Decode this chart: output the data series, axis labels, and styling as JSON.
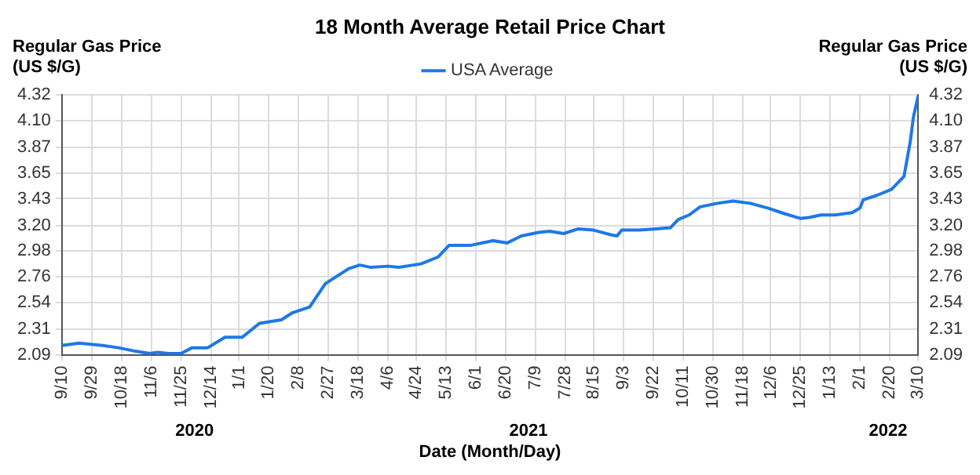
{
  "chart_data": {
    "type": "line",
    "title": "18 Month Average Retail Price Chart",
    "xlabel": "Date (Month/Day)",
    "ylabel": "Regular Gas Price (US $/G)",
    "y2label": "Regular Gas Price (US $/G)",
    "annotations": [
      "2020",
      "2021",
      "2022"
    ],
    "legend": "top",
    "grid": true,
    "marker": "none",
    "line_style": "solid",
    "xlim": [
      "2020-09-10",
      "2022-03-10"
    ],
    "xticks": [
      {
        "value": "2020-09-10",
        "label": "9/10"
      },
      {
        "value": "2020-09-29",
        "label": "9/29"
      },
      {
        "value": "2020-10-18",
        "label": "10/18"
      },
      {
        "value": "2020-11-06",
        "label": "11/6"
      },
      {
        "value": "2020-11-25",
        "label": "11/25"
      },
      {
        "value": "2020-12-14",
        "label": "12/14"
      },
      {
        "value": "2021-01-01",
        "label": "1/1"
      },
      {
        "value": "2021-01-20",
        "label": "1/20"
      },
      {
        "value": "2021-02-08",
        "label": "2/8"
      },
      {
        "value": "2021-02-27",
        "label": "2/27"
      },
      {
        "value": "2021-03-18",
        "label": "3/18"
      },
      {
        "value": "2021-04-06",
        "label": "4/6"
      },
      {
        "value": "2021-04-24",
        "label": "4/24"
      },
      {
        "value": "2021-05-13",
        "label": "5/13"
      },
      {
        "value": "2021-06-01",
        "label": "6/1"
      },
      {
        "value": "2021-06-20",
        "label": "6/20"
      },
      {
        "value": "2021-07-09",
        "label": "7/9"
      },
      {
        "value": "2021-07-28",
        "label": "7/28"
      },
      {
        "value": "2021-08-15",
        "label": "8/15"
      },
      {
        "value": "2021-09-03",
        "label": "9/3"
      },
      {
        "value": "2021-09-22",
        "label": "9/22"
      },
      {
        "value": "2021-10-11",
        "label": "10/11"
      },
      {
        "value": "2021-10-30",
        "label": "10/30"
      },
      {
        "value": "2021-11-18",
        "label": "11/18"
      },
      {
        "value": "2021-12-06",
        "label": "12/6"
      },
      {
        "value": "2021-12-25",
        "label": "12/25"
      },
      {
        "value": "2022-01-13",
        "label": "1/13"
      },
      {
        "value": "2022-02-01",
        "label": "2/1"
      },
      {
        "value": "2022-02-20",
        "label": "2/20"
      },
      {
        "value": "2022-03-10",
        "label": "3/10"
      }
    ],
    "ylim": [
      2.09,
      4.32
    ],
    "yticks": [
      2.09,
      2.31,
      2.54,
      2.76,
      2.98,
      {
        "value": 3.2,
        "label": "3.20"
      },
      3.43,
      3.65,
      3.87,
      {
        "value": 4.1,
        "label": "4.10"
      },
      4.32
    ],
    "y2lim": [
      2.09,
      4.32
    ],
    "y2ticks": [
      2.09,
      2.31,
      2.54,
      2.76,
      2.98,
      {
        "value": 3.2,
        "label": "3.20"
      },
      3.43,
      3.65,
      3.87,
      {
        "value": 4.1,
        "label": "4.10"
      },
      4.32
    ],
    "series": [
      {
        "name": "USA Average",
        "color": "#1e78e6",
        "x": [
          "2020-09-10",
          "2020-09-21",
          "2020-10-06",
          "2020-10-16",
          "2020-10-27",
          "2020-11-05",
          "2020-11-10",
          "2020-11-17",
          "2020-11-25",
          "2020-12-02",
          "2020-12-12",
          "2020-12-23",
          "2021-01-03",
          "2021-01-14",
          "2021-01-28",
          "2021-02-04",
          "2021-02-15",
          "2021-02-25",
          "2021-03-12",
          "2021-03-19",
          "2021-03-26",
          "2021-04-06",
          "2021-04-13",
          "2021-04-27",
          "2021-05-08",
          "2021-05-15",
          "2021-05-29",
          "2021-06-12",
          "2021-06-21",
          "2021-06-30",
          "2021-07-11",
          "2021-07-18",
          "2021-07-27",
          "2021-08-05",
          "2021-08-15",
          "2021-08-26",
          "2021-08-30",
          "2021-09-02",
          "2021-09-13",
          "2021-09-24",
          "2021-10-03",
          "2021-10-08",
          "2021-10-15",
          "2021-10-22",
          "2021-11-02",
          "2021-11-12",
          "2021-11-23",
          "2021-12-04",
          "2021-12-15",
          "2021-12-25",
          "2021-12-31",
          "2022-01-07",
          "2022-01-16",
          "2022-01-27",
          "2022-02-01",
          "2022-02-03",
          "2022-02-12",
          "2022-02-21",
          "2022-03-01",
          "2022-03-05",
          "2022-03-07",
          "2022-03-10"
        ],
        "values": [
          2.17,
          2.19,
          2.17,
          2.15,
          2.12,
          2.1,
          2.11,
          2.1,
          2.1,
          2.15,
          2.15,
          2.24,
          2.24,
          2.36,
          2.39,
          2.45,
          2.5,
          2.7,
          2.83,
          2.86,
          2.84,
          2.85,
          2.84,
          2.87,
          2.93,
          3.03,
          3.03,
          3.07,
          3.05,
          3.11,
          3.14,
          3.15,
          3.13,
          3.17,
          3.16,
          3.12,
          3.11,
          3.16,
          3.16,
          3.17,
          3.18,
          3.25,
          3.29,
          3.36,
          3.39,
          3.41,
          3.39,
          3.35,
          3.3,
          3.26,
          3.27,
          3.29,
          3.29,
          3.31,
          3.35,
          3.42,
          3.46,
          3.51,
          3.62,
          3.92,
          4.13,
          4.31
        ]
      }
    ]
  }
}
